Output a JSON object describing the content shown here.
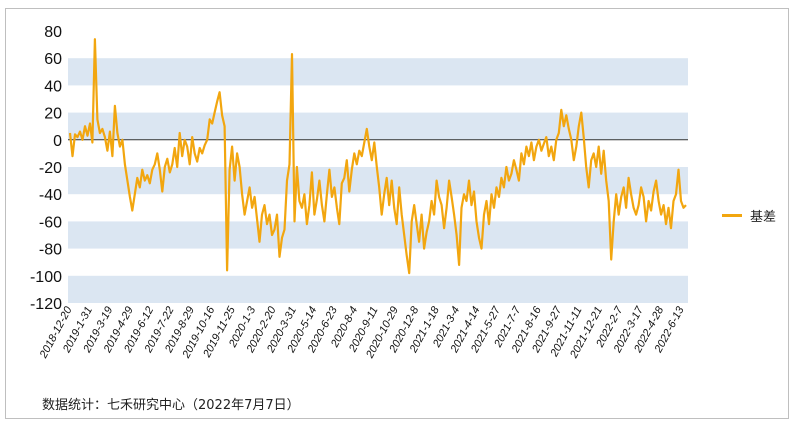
{
  "source_note": "数据统计：七禾研究中心（2022年7月7日）",
  "colors": {
    "series": "#f2a60f",
    "band": "#dbe6f2",
    "zero_line": "#333333"
  },
  "chart_data": {
    "type": "line",
    "title": "",
    "xlabel": "",
    "ylabel": "",
    "ylim": [
      -120,
      80
    ],
    "yticks": [
      80,
      60,
      40,
      20,
      0,
      -20,
      -40,
      -60,
      -80,
      -100,
      -120
    ],
    "grid": "alternating-bands",
    "legend_position": "right",
    "xticks": [
      "2018-12-20",
      "2019-1-31",
      "2019-3-19",
      "2019-4-29",
      "2019-6-12",
      "2019-7-22",
      "2019-8-29",
      "2019-10-16",
      "2019-11-25",
      "2020-1-3",
      "2020-2-20",
      "2020-3-31",
      "2020-5-14",
      "2020-6-23",
      "2020-8-4",
      "2020-9-11",
      "2020-10-29",
      "2020-12-8",
      "2021-1-18",
      "2021-3-4",
      "2021-4-14",
      "2021-5-27",
      "2021-7-7",
      "2021-8-16",
      "2021-9-27",
      "2021-11-11",
      "2021-12-21",
      "2022-2-7",
      "2022-3-17",
      "2022-4-28",
      "2022-6-13"
    ],
    "series": [
      {
        "name": "基差",
        "values": [
          5,
          -12,
          4,
          2,
          6,
          0,
          10,
          3,
          12,
          -2,
          74,
          15,
          5,
          8,
          2,
          -8,
          6,
          -12,
          25,
          5,
          -5,
          0,
          -18,
          -30,
          -42,
          -52,
          -40,
          -28,
          -35,
          -22,
          -30,
          -26,
          -32,
          -22,
          -18,
          -10,
          -22,
          -38,
          -20,
          -14,
          -24,
          -18,
          -6,
          -20,
          5,
          -12,
          0,
          -5,
          -18,
          2,
          -10,
          -16,
          -6,
          -10,
          -4,
          0,
          15,
          12,
          20,
          28,
          35,
          18,
          10,
          -96,
          -22,
          -5,
          -30,
          -10,
          -20,
          -40,
          -55,
          -45,
          -35,
          -50,
          -42,
          -58,
          -75,
          -55,
          -48,
          -62,
          -55,
          -70,
          -66,
          -55,
          -86,
          -72,
          -66,
          -30,
          -18,
          63,
          -60,
          -20,
          -45,
          -50,
          -40,
          -62,
          -48,
          -24,
          -55,
          -44,
          -30,
          -48,
          -60,
          -40,
          -22,
          -42,
          -35,
          -50,
          -62,
          -32,
          -28,
          -15,
          -38,
          -22,
          -10,
          -18,
          -8,
          -12,
          -2,
          8,
          -5,
          -15,
          -2,
          -20,
          -35,
          -55,
          -40,
          -28,
          -48,
          -30,
          -50,
          -62,
          -35,
          -55,
          -70,
          -85,
          -98,
          -60,
          -48,
          -62,
          -75,
          -55,
          -80,
          -68,
          -60,
          -45,
          -55,
          -30,
          -42,
          -48,
          -65,
          -50,
          -30,
          -42,
          -55,
          -70,
          -92,
          -50,
          -40,
          -45,
          -30,
          -48,
          -38,
          -60,
          -72,
          -80,
          -55,
          -45,
          -62,
          -40,
          -50,
          -35,
          -42,
          -28,
          -35,
          -20,
          -30,
          -25,
          -15,
          -22,
          -30,
          -10,
          -18,
          -5,
          -12,
          -2,
          -15,
          -5,
          0,
          -8,
          -3,
          2,
          -12,
          -5,
          -15,
          0,
          5,
          22,
          10,
          18,
          8,
          0,
          -15,
          -5,
          10,
          20,
          2,
          -20,
          -35,
          -15,
          -10,
          -20,
          -5,
          -25,
          -8,
          -30,
          -45,
          -88,
          -60,
          -40,
          -55,
          -42,
          -35,
          -50,
          -28,
          -40,
          -50,
          -55,
          -48,
          -35,
          -42,
          -60,
          -45,
          -52,
          -38,
          -30,
          -45,
          -55,
          -48,
          -62,
          -50,
          -65,
          -45,
          -40,
          -22,
          -45,
          -50,
          -48
        ]
      }
    ]
  }
}
